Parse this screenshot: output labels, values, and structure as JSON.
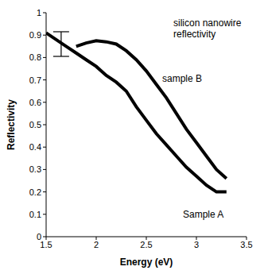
{
  "chart_data": {
    "type": "line",
    "title": "silicon nanowire reflectivity",
    "x_label": "Energy (eV)",
    "y_label": "Reflectivity",
    "x": [
      1.5,
      1.6,
      1.7,
      1.8,
      1.9,
      2.0,
      2.1,
      2.2,
      2.3,
      2.4,
      2.5,
      2.6,
      2.7,
      2.8,
      2.9,
      3.0,
      3.1,
      3.2,
      3.3
    ],
    "series": [
      {
        "name": "Sample A",
        "color": "#000000",
        "values": [
          0.91,
          0.88,
          0.85,
          0.82,
          0.79,
          0.76,
          0.72,
          0.69,
          0.65,
          0.58,
          0.52,
          0.46,
          0.41,
          0.36,
          0.31,
          0.27,
          0.23,
          0.2,
          0.2
        ]
      },
      {
        "name": "sample B",
        "color": "#000000",
        "values": [
          null,
          null,
          null,
          0.85,
          0.865,
          0.875,
          0.87,
          0.86,
          0.83,
          0.79,
          0.74,
          0.68,
          0.62,
          0.55,
          0.48,
          0.42,
          0.36,
          0.3,
          0.26
        ]
      }
    ],
    "error_bar": {
      "x": 1.65,
      "y": 0.86,
      "error": 0.055
    },
    "xlim": [
      1.5,
      3.5
    ],
    "xticks": [
      1.5,
      2,
      2.5,
      3,
      3.5
    ],
    "ylim": [
      0,
      1
    ],
    "yticks": [
      0,
      0.1,
      0.2,
      0.3,
      0.4,
      0.5,
      0.6,
      0.7,
      0.8,
      0.9,
      1
    ],
    "grid": false
  }
}
